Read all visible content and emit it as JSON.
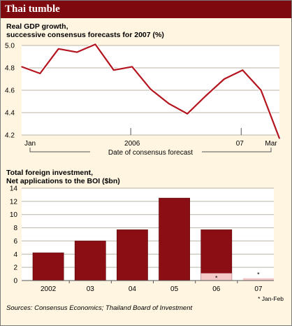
{
  "header": {
    "title": "Thai tumble"
  },
  "colors": {
    "header_bg": "#7e0a10",
    "line": "#b4151e",
    "bar": "#8b0e14",
    "bar_light": "#f6c9c9",
    "background": "#fff5e0"
  },
  "chart_data": [
    {
      "type": "line",
      "title": "Real GDP growth,\nsuccessive consensus forecasts for 2007 (%)",
      "xlabel": "Date of consensus forecast",
      "ylabel": "",
      "ylim": [
        4.2,
        5.0
      ],
      "yticks": [
        "5.0",
        "4.8",
        "4.6",
        "4.4",
        "4.2"
      ],
      "xtick_labels": [
        "Jan",
        "2006",
        "07",
        "Mar"
      ],
      "grid": true,
      "x": [
        "2005-01",
        "2005-02",
        "2005-03",
        "2005-04",
        "2005-05",
        "2005-06",
        "2005-07",
        "2005-08",
        "2005-09",
        "2005-10",
        "2005-11",
        "2005-12",
        "2006-01",
        "2006-02",
        "2006-03"
      ],
      "values": [
        4.81,
        4.75,
        4.97,
        4.94,
        5.01,
        4.78,
        4.81,
        4.61,
        4.48,
        4.39,
        4.55,
        4.7,
        4.78,
        4.6,
        4.17
      ]
    },
    {
      "type": "bar",
      "title": "Total foreign investment,\nNet applications to the BOI ($bn)",
      "xlabel": "",
      "ylabel": "",
      "ylim": [
        0,
        14
      ],
      "yticks": [
        "14",
        "12",
        "10",
        "8",
        "6",
        "4",
        "2",
        "0"
      ],
      "grid": true,
      "categories": [
        "2002",
        "03",
        "04",
        "05",
        "06",
        "07"
      ],
      "values": [
        4.2,
        6.0,
        7.7,
        12.5,
        7.7,
        0.0
      ],
      "jan_feb_values": [
        null,
        null,
        null,
        null,
        1.1,
        0.35
      ],
      "jan_feb_marker": "*",
      "note": "* Jan-Feb"
    }
  ],
  "source": "Sources: Consensus Economics; Thailand Board of Investment"
}
